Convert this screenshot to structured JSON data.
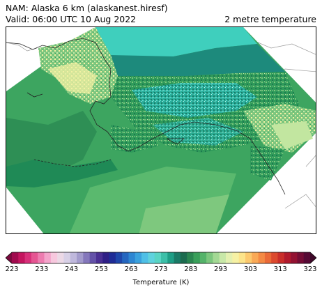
{
  "header": {
    "model_line": "NAM: Alaska 6 km (alaskanest.hiresf)",
    "valid_line": "Valid: 06:00 UTC 10 Aug 2022",
    "field_name": "2 metre temperature"
  },
  "colorbar": {
    "label": "Temperature (K)",
    "min": 223,
    "max": 323,
    "ticks": [
      "223",
      "233",
      "243",
      "253",
      "263",
      "273",
      "283",
      "293",
      "303",
      "313",
      "323"
    ],
    "colors": [
      "#a10a4e",
      "#c4155f",
      "#d8307a",
      "#e55592",
      "#ee7cb0",
      "#f4a4cb",
      "#f7c8de",
      "#ecd9e6",
      "#d8d0e6",
      "#bfb8dc",
      "#a39bcc",
      "#8477bb",
      "#6452a8",
      "#4a2f93",
      "#2f1f86",
      "#1f2c96",
      "#1f47aa",
      "#2566bf",
      "#2e86d2",
      "#3ba2de",
      "#4fbfe6",
      "#5fd2de",
      "#59d4c4",
      "#3cbfa8",
      "#1e9e86",
      "#1a7a66",
      "#1c6b4f",
      "#2a8550",
      "#3a9f5a",
      "#55b36a",
      "#7cc67e",
      "#a3d894",
      "#c8e8a8",
      "#e4f0b0",
      "#f6f1a4",
      "#fce48a",
      "#fcc96e",
      "#f9a956",
      "#f48a44",
      "#ea6a37",
      "#dc4a2e",
      "#c92e2a",
      "#b01a2c",
      "#931232",
      "#740d35",
      "#560a34"
    ],
    "under_color": "#7a0a3e",
    "over_color": "#3e0828"
  },
  "map": {
    "colors": {
      "ocean_deep": "#2e8f55",
      "ocean_mid": "#3da560",
      "ocean_light": "#5ab96e",
      "ocean_pale": "#7ec87e",
      "cold_teal": "#1d8a7c",
      "ice_teal": "#3fcfbd",
      "warm_land": "#c2e6a0",
      "hot_land": "#f3f0a4",
      "coast_line": "#222222",
      "border_line": "#b0b0b0"
    }
  }
}
